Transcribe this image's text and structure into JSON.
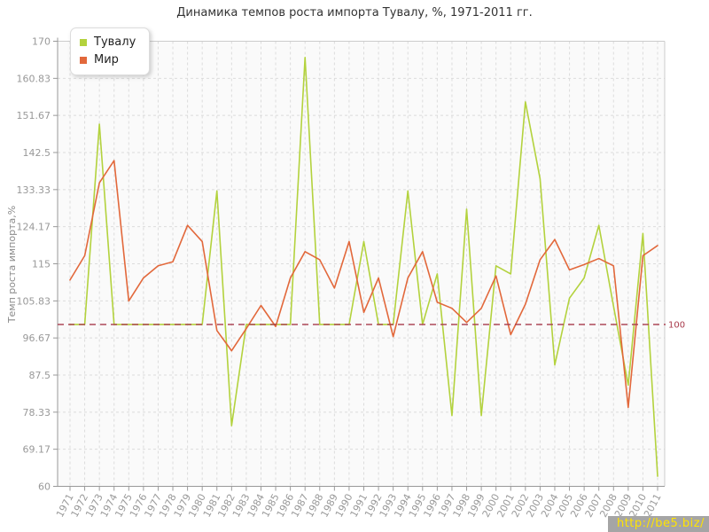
{
  "title": "Динамика темпов роста импорта Тувалу, %, 1971-2011 гг.",
  "watermark": "http://be5.biz/",
  "colors": {
    "watermark_bg": "#a5a5a5",
    "watermark_text": "#ffe400",
    "plot_bg": "#fafafa",
    "grid": "#dcdcdc",
    "axis": "#999999",
    "outer_border": "#cccccc",
    "tick_text": "#999999"
  },
  "chart_data": {
    "type": "line",
    "title": "Динамика темпов роста импорта Тувалу, %, 1971-2011 гг.",
    "xlabel": "",
    "ylabel": "Темп роста импорта,%",
    "ylim": [
      60,
      170
    ],
    "grid": true,
    "legend_position": "top-left",
    "ytick_labels": [
      "170",
      "160.83",
      "151.67",
      "142.5",
      "133.33",
      "124.17",
      "115",
      "105.83",
      "96.67",
      "87.5",
      "78.33",
      "69.17",
      "60"
    ],
    "categories": [
      "1971",
      "1972",
      "1973",
      "1974",
      "1975",
      "1976",
      "1977",
      "1978",
      "1979",
      "1980",
      "1981",
      "1982",
      "1983",
      "1984",
      "1985",
      "1986",
      "1987",
      "1988",
      "1989",
      "1990",
      "1991",
      "1992",
      "1993",
      "1994",
      "1995",
      "1996",
      "1997",
      "1998",
      "1999",
      "2000",
      "2001",
      "2002",
      "2003",
      "2004",
      "2005",
      "2006",
      "2007",
      "2008",
      "2009",
      "2010",
      "2011"
    ],
    "series": [
      {
        "name": "Тувалу",
        "color": "#b3d23d",
        "values": [
          100,
          100,
          149.5,
          100,
          100,
          100,
          100,
          100,
          100,
          100,
          133,
          75,
          100,
          100,
          100,
          100,
          166,
          100,
          100,
          100,
          120.5,
          100,
          100,
          133,
          100,
          112.5,
          77.5,
          128.5,
          77.5,
          114.5,
          112.5,
          155,
          136,
          90,
          106.5,
          111.5,
          124.5,
          104.5,
          85,
          122.5,
          62.5
        ]
      },
      {
        "name": "Мир",
        "color": "#e2683b",
        "values": [
          111,
          117,
          135,
          140.5,
          105.8,
          111.5,
          114.5,
          115.5,
          124.5,
          120.5,
          98.5,
          93.5,
          99,
          104.7,
          99.5,
          111.5,
          118,
          116,
          109,
          120.5,
          103,
          111.5,
          97,
          111.5,
          118,
          105.5,
          104,
          100.5,
          104,
          112,
          97.5,
          105,
          116,
          121,
          113.5,
          114.8,
          116.3,
          114.5,
          79.5,
          117,
          119.5
        ]
      }
    ],
    "reference_line": {
      "value": 100,
      "label": "100",
      "color": "#a8394a"
    }
  }
}
